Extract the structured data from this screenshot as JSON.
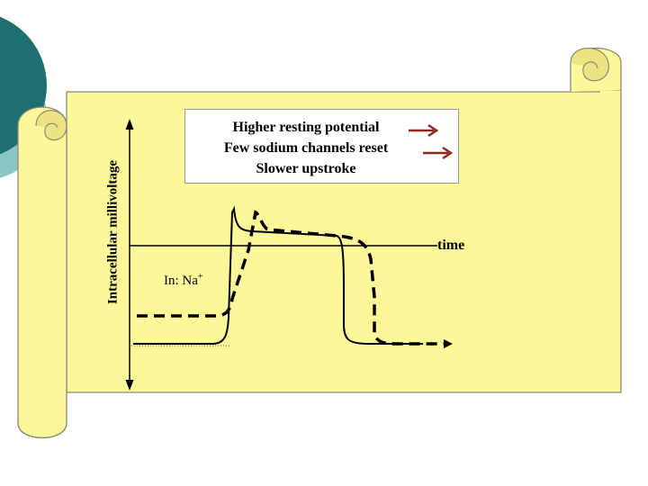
{
  "diagram": {
    "y_axis_label": "Intracellular millivoltage",
    "x_axis_label": "time",
    "callout_lines": [
      "Higher resting potential",
      "Few sodium channels reset",
      "Slower upstroke"
    ],
    "ion_label": "In:  Na",
    "ion_charge": "+",
    "colors": {
      "scroll_fill": "#fdf79a",
      "scroll_stroke": "#8b8b7a",
      "circle_teal": "#1e6f6f",
      "circle_light": "#8ac7c4",
      "arrow": "#8b2a1c",
      "curve": "#000000"
    },
    "curves": [
      {
        "style": "solid",
        "description_key": "normal"
      },
      {
        "style": "dashed",
        "description_key": "modified"
      }
    ]
  }
}
